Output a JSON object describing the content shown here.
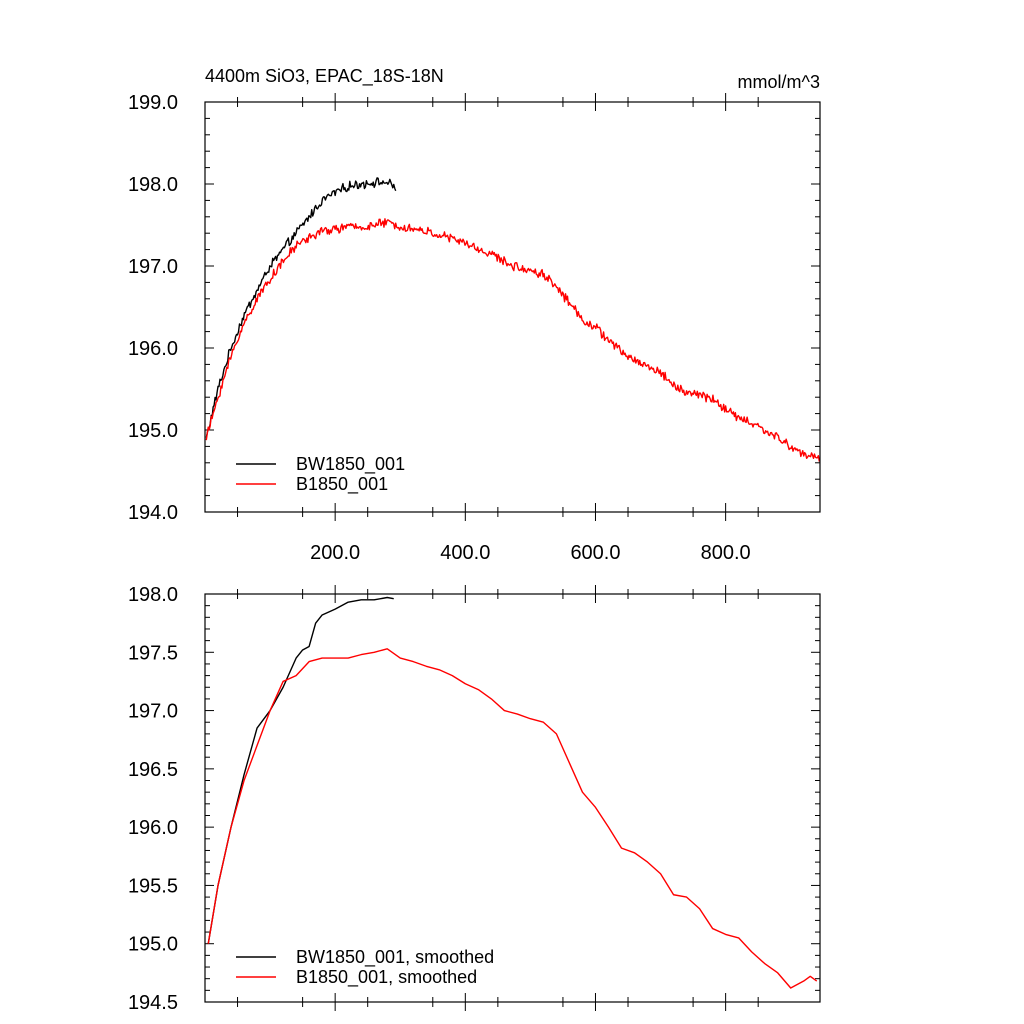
{
  "chart_data": [
    {
      "type": "line",
      "title": "4400m SiO3, EPAC_18S-18N",
      "units": "mmol/m^3",
      "xlim": [
        0,
        945
      ],
      "ylim": [
        194.0,
        199.0
      ],
      "xticks": [
        200,
        400,
        600,
        800
      ],
      "xtick_labels": [
        "200.0",
        "400.0",
        "600.0",
        "800.0"
      ],
      "yticks": [
        194,
        195,
        196,
        197,
        198,
        199
      ],
      "ytick_labels": [
        "194.0",
        "195.0",
        "196.0",
        "197.0",
        "198.0",
        "199.0"
      ],
      "legend_position": "bottom-left",
      "series": [
        {
          "name": "BW1850_001",
          "color": "#000000",
          "x": [
            2,
            20,
            40,
            60,
            80,
            100,
            120,
            140,
            160,
            180,
            200,
            220,
            240,
            260,
            280,
            293
          ],
          "y": [
            194.9,
            195.5,
            196.0,
            196.4,
            196.7,
            197.0,
            197.2,
            197.4,
            197.6,
            197.8,
            197.9,
            197.97,
            198.0,
            198.02,
            198.02,
            197.95
          ]
        },
        {
          "name": "B1850_001",
          "color": "#ff0000",
          "x": [
            2,
            20,
            40,
            60,
            80,
            100,
            120,
            140,
            160,
            180,
            200,
            220,
            240,
            260,
            280,
            300,
            320,
            340,
            360,
            380,
            400,
            420,
            440,
            460,
            480,
            500,
            520,
            540,
            560,
            580,
            600,
            620,
            640,
            660,
            680,
            700,
            720,
            740,
            760,
            780,
            800,
            820,
            840,
            860,
            880,
            900,
            920,
            945
          ],
          "y": [
            194.9,
            195.4,
            195.9,
            196.3,
            196.6,
            196.85,
            197.05,
            197.25,
            197.35,
            197.42,
            197.45,
            197.48,
            197.47,
            197.5,
            197.53,
            197.48,
            197.45,
            197.42,
            197.38,
            197.33,
            197.28,
            197.2,
            197.15,
            197.05,
            196.98,
            196.95,
            196.9,
            196.75,
            196.55,
            196.35,
            196.25,
            196.1,
            195.95,
            195.85,
            195.78,
            195.7,
            195.55,
            195.45,
            195.43,
            195.38,
            195.25,
            195.15,
            195.08,
            195.0,
            194.9,
            194.8,
            194.7,
            194.65
          ]
        }
      ]
    },
    {
      "type": "line",
      "title": "",
      "xlim": [
        0,
        945
      ],
      "ylim": [
        194.5,
        198.0
      ],
      "yticks": [
        194.5,
        195.0,
        195.5,
        196.0,
        196.5,
        197.0,
        197.5,
        198.0
      ],
      "ytick_labels": [
        "194.5",
        "195.0",
        "195.5",
        "196.0",
        "196.5",
        "197.0",
        "197.5",
        "198.0"
      ],
      "xticks": [
        200,
        400,
        600,
        800
      ],
      "legend_position": "bottom-left",
      "series": [
        {
          "name": "BW1850_001, smoothed",
          "color": "#000000",
          "x": [
            5,
            20,
            40,
            60,
            80,
            100,
            120,
            140,
            150,
            160,
            170,
            180,
            200,
            220,
            240,
            260,
            280,
            290
          ],
          "y": [
            195.0,
            195.5,
            196.0,
            196.45,
            196.85,
            197.0,
            197.2,
            197.45,
            197.52,
            197.55,
            197.75,
            197.82,
            197.87,
            197.93,
            197.95,
            197.95,
            197.97,
            197.96
          ]
        },
        {
          "name": "B1850_001, smoothed",
          "color": "#ff0000",
          "x": [
            5,
            20,
            40,
            60,
            80,
            100,
            120,
            140,
            160,
            180,
            200,
            220,
            240,
            260,
            280,
            300,
            320,
            340,
            360,
            380,
            400,
            420,
            440,
            460,
            480,
            500,
            520,
            540,
            560,
            580,
            600,
            620,
            640,
            660,
            680,
            700,
            720,
            740,
            760,
            780,
            800,
            820,
            840,
            860,
            880,
            900,
            920,
            930,
            940
          ],
          "y": [
            195.0,
            195.5,
            196.0,
            196.4,
            196.7,
            197.0,
            197.25,
            197.3,
            197.42,
            197.45,
            197.45,
            197.45,
            197.48,
            197.5,
            197.53,
            197.45,
            197.42,
            197.38,
            197.35,
            197.3,
            197.23,
            197.18,
            197.1,
            197.0,
            196.97,
            196.93,
            196.9,
            196.8,
            196.55,
            196.3,
            196.17,
            196.0,
            195.82,
            195.78,
            195.7,
            195.6,
            195.42,
            195.4,
            195.3,
            195.13,
            195.08,
            195.05,
            194.93,
            194.83,
            194.75,
            194.62,
            194.68,
            194.72,
            194.68
          ]
        }
      ]
    }
  ]
}
